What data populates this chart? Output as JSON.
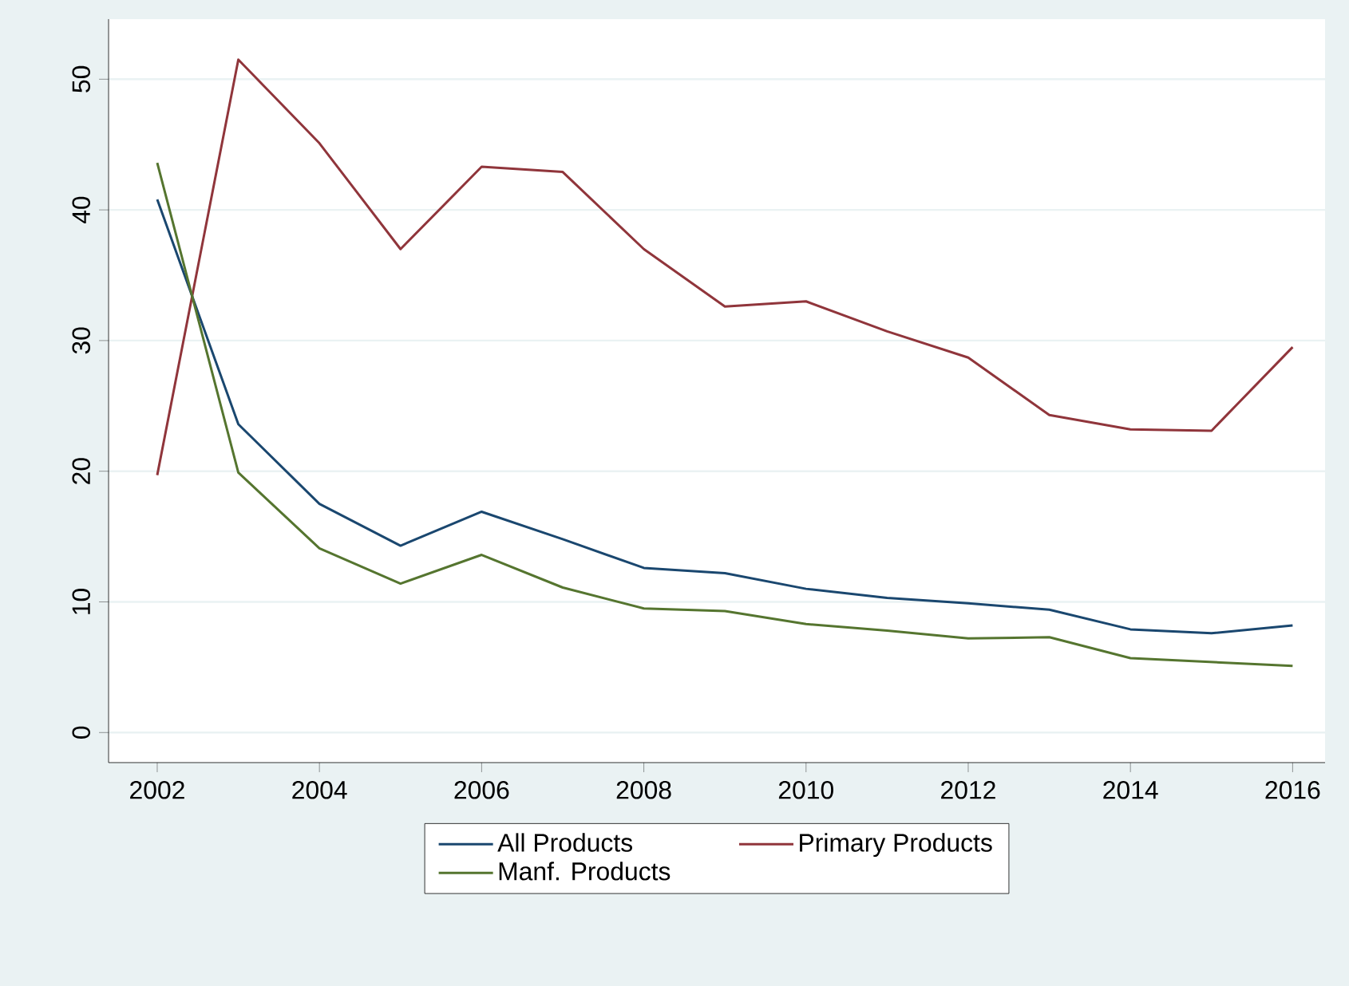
{
  "chart_data": {
    "type": "line",
    "x": [
      2002,
      2003,
      2004,
      2005,
      2006,
      2007,
      2008,
      2009,
      2010,
      2011,
      2012,
      2013,
      2014,
      2015,
      2016
    ],
    "series": [
      {
        "name": "All Products",
        "color": "#1a476f",
        "values": [
          40.8,
          23.6,
          17.5,
          14.3,
          16.9,
          14.8,
          12.6,
          12.2,
          11.0,
          10.3,
          9.9,
          9.4,
          7.9,
          7.6,
          8.2
        ]
      },
      {
        "name": "Primary Products",
        "color": "#90353b",
        "values": [
          19.7,
          51.5,
          45.1,
          37.0,
          43.3,
          42.9,
          37.0,
          32.6,
          33.0,
          30.7,
          28.7,
          24.3,
          23.2,
          23.1,
          29.5
        ]
      },
      {
        "name": "Manf. Products",
        "color": "#55752f",
        "values": [
          43.6,
          19.9,
          14.1,
          11.4,
          13.6,
          11.1,
          9.5,
          9.3,
          8.3,
          7.8,
          7.2,
          7.3,
          5.7,
          5.4,
          5.1
        ]
      }
    ],
    "xlim": [
      2001.4,
      2016.4
    ],
    "ylim": [
      -2.3,
      54.6
    ],
    "xticks": [
      2002,
      2004,
      2006,
      2008,
      2010,
      2012,
      2014,
      2016
    ],
    "yticks": [
      0,
      10,
      20,
      30,
      40,
      50
    ],
    "grid": "y",
    "legend": "bottom",
    "marker": "none",
    "line_style": "solid"
  }
}
